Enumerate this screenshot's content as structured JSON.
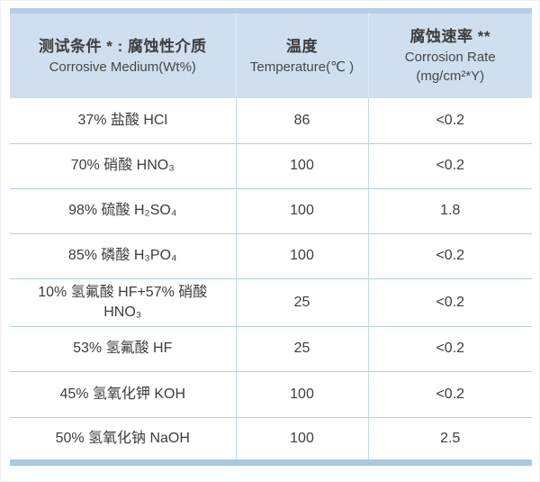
{
  "chart_data": {
    "type": "table",
    "columns": [
      {
        "zh": "测试条件 * : 腐蚀性介质",
        "en": "Corrosive Medium(Wt%)"
      },
      {
        "zh": "温度",
        "en": "Temperature(℃ )"
      },
      {
        "zh": "腐蚀速率 **",
        "en": "Corrosion Rate\n(mg/cm²*Y)"
      }
    ],
    "rows": [
      {
        "medium": "37% 盐酸 HCl",
        "temperature": "86",
        "rate": "<0.2"
      },
      {
        "medium": "70% 硝酸 HNO₃",
        "temperature": "100",
        "rate": "<0.2"
      },
      {
        "medium": "98% 硫酸 H₂SO₄",
        "temperature": "100",
        "rate": "1.8"
      },
      {
        "medium": "85% 磷酸 H₃PO₄",
        "temperature": "100",
        "rate": "<0.2"
      },
      {
        "medium": "10% 氢氟酸 HF+57% 硝酸\nHNO₃",
        "temperature": "25",
        "rate": "<0.2"
      },
      {
        "medium": "53% 氢氟酸 HF",
        "temperature": "25",
        "rate": "<0.2"
      },
      {
        "medium": "45% 氢氧化钾 KOH",
        "temperature": "100",
        "rate": "<0.2"
      },
      {
        "medium": "50% 氢氧化钠 NaOH",
        "temperature": "100",
        "rate": "2.5"
      }
    ]
  },
  "colors": {
    "header_bg": "#cfdfee",
    "top_bar": "#b6cee4",
    "bottom_bar": "#a9c8e1",
    "row_divider": "#aed0ea",
    "col_divider": "#bfdaf0",
    "header_divider": "#dde9f4",
    "text": "#3d3d3d"
  }
}
